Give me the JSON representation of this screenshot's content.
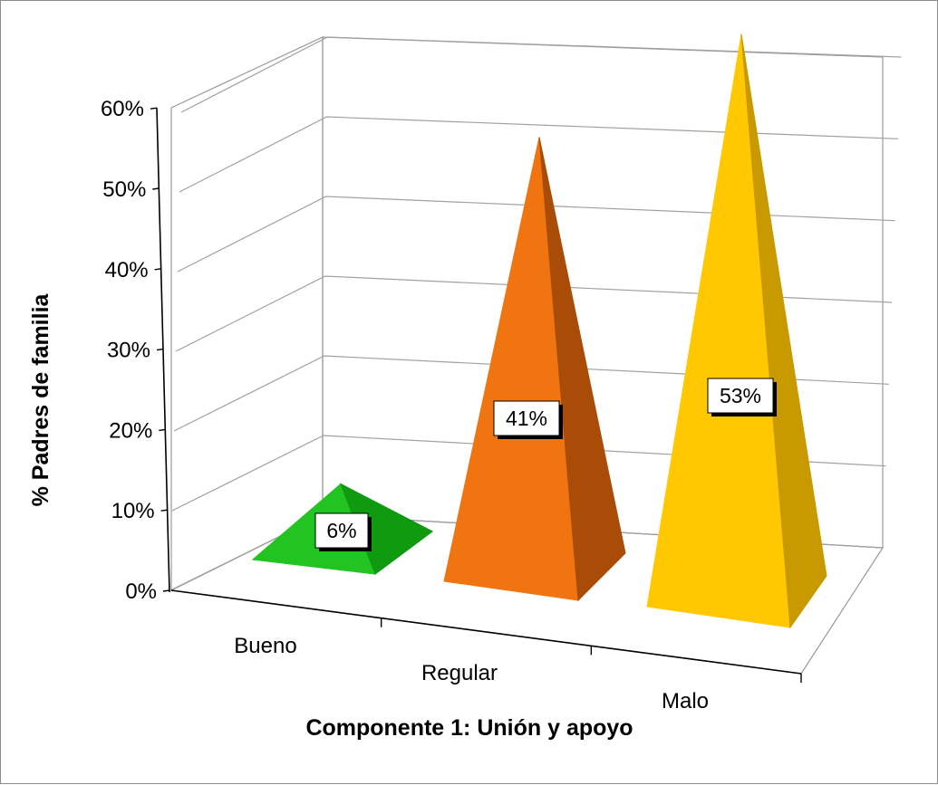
{
  "chart_data": {
    "type": "bar",
    "shape": "pyramid-3d",
    "categories": [
      "Bueno",
      "Regular",
      "Malo"
    ],
    "values": [
      6,
      41,
      53
    ],
    "data_labels": [
      "6%",
      "41%",
      "53%"
    ],
    "colors": [
      "#22c422",
      "#f07510",
      "#ffc800"
    ],
    "side_colors": [
      "#0f9a0f",
      "#a84c08",
      "#c99a00"
    ],
    "ylim": [
      0,
      60
    ],
    "y_ticks": [
      0,
      10,
      20,
      30,
      40,
      50,
      60
    ],
    "y_tick_labels": [
      "0%",
      "10%",
      "20%",
      "30%",
      "40%",
      "50%",
      "60%"
    ],
    "ylabel": "% Padres de familia",
    "xlabel": "Componente 1: Unión y apoyo",
    "grid": true,
    "legend": "none"
  }
}
